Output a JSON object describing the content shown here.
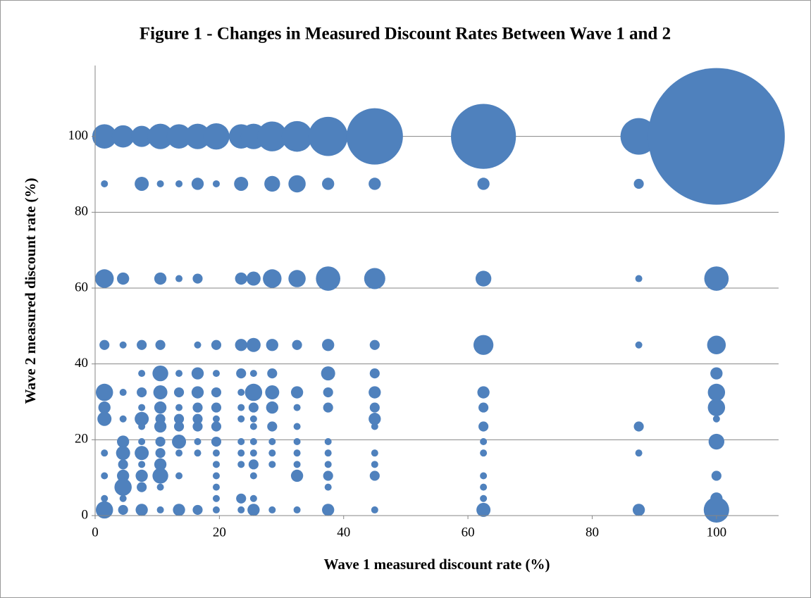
{
  "chart_data": {
    "type": "bubble",
    "title": "Figure 1 - Changes in Measured Discount Rates Between Wave 1 and 2",
    "x_label": "Wave 1 measured discount rate (%)",
    "y_label": "Wave 2 measured discount rate (%)",
    "color": "#4f81bd",
    "grid": true,
    "xlim": [
      0,
      110
    ],
    "xticks": [
      0,
      20,
      40,
      60,
      80,
      100
    ],
    "ylim": [
      0,
      120
    ],
    "yticks": [
      0,
      20,
      40,
      60,
      80,
      100
    ],
    "x": [
      1.5,
      4.5,
      7.5,
      10.5,
      13.5,
      16.5,
      19.5,
      23.5,
      25.5,
      28.5,
      32.5,
      37.5,
      45,
      62.5,
      87.5,
      100,
      1.5,
      7.5,
      10.5,
      13.5,
      16.5,
      19.5,
      23.5,
      28.5,
      32.5,
      37.5,
      45,
      62.5,
      87.5,
      1.5,
      4.5,
      10.5,
      13.5,
      16.5,
      23.5,
      25.5,
      28.5,
      32.5,
      37.5,
      45,
      62.5,
      87.5,
      100,
      1.5,
      4.5,
      7.5,
      10.5,
      16.5,
      19.5,
      23.5,
      25.5,
      28.5,
      32.5,
      37.5,
      45,
      62.5,
      87.5,
      100,
      7.5,
      10.5,
      13.5,
      16.5,
      19.5,
      23.5,
      25.5,
      28.5,
      37.5,
      45,
      100,
      1.5,
      4.5,
      7.5,
      10.5,
      13.5,
      16.5,
      19.5,
      23.5,
      25.5,
      28.5,
      32.5,
      37.5,
      45,
      62.5,
      100,
      1.5,
      7.5,
      10.5,
      13.5,
      16.5,
      19.5,
      23.5,
      25.5,
      28.5,
      32.5,
      37.5,
      45,
      62.5,
      100,
      1.5,
      4.5,
      7.5,
      10.5,
      13.5,
      16.5,
      19.5,
      23.5,
      25.5,
      45,
      100,
      7.5,
      10.5,
      13.5,
      16.5,
      19.5,
      25.5,
      28.5,
      32.5,
      45,
      62.5,
      87.5,
      4.5,
      7.5,
      10.5,
      13.5,
      16.5,
      19.5,
      23.5,
      25.5,
      28.5,
      32.5,
      37.5,
      62.5,
      100,
      1.5,
      4.5,
      7.5,
      10.5,
      13.5,
      16.5,
      19.5,
      23.5,
      25.5,
      28.5,
      32.5,
      37.5,
      45,
      62.5,
      87.5,
      4.5,
      7.5,
      10.5,
      19.5,
      23.5,
      25.5,
      28.5,
      32.5,
      37.5,
      45,
      1.5,
      4.5,
      7.5,
      10.5,
      13.5,
      19.5,
      25.5,
      32.5,
      37.5,
      45,
      62.5,
      100,
      4.5,
      7.5,
      10.5,
      19.5,
      37.5,
      62.5,
      1.5,
      4.5,
      19.5,
      23.5,
      25.5,
      62.5,
      100,
      1.5,
      4.5,
      7.5,
      10.5,
      13.5,
      16.5,
      19.5,
      23.5,
      25.5,
      28.5,
      32.5,
      37.5,
      45,
      62.5,
      87.5,
      100
    ],
    "values": [
      100,
      100,
      100,
      100,
      100,
      100,
      100,
      100,
      100,
      100,
      100,
      100,
      100,
      100,
      100,
      100,
      87.5,
      87.5,
      87.5,
      87.5,
      87.5,
      87.5,
      87.5,
      87.5,
      87.5,
      87.5,
      87.5,
      87.5,
      87.5,
      62.5,
      62.5,
      62.5,
      62.5,
      62.5,
      62.5,
      62.5,
      62.5,
      62.5,
      62.5,
      62.5,
      62.5,
      62.5,
      62.5,
      45,
      45,
      45,
      45,
      45,
      45,
      45,
      45,
      45,
      45,
      45,
      45,
      45,
      45,
      45,
      37.5,
      37.5,
      37.5,
      37.5,
      37.5,
      37.5,
      37.5,
      37.5,
      37.5,
      37.5,
      37.5,
      32.5,
      32.5,
      32.5,
      32.5,
      32.5,
      32.5,
      32.5,
      32.5,
      32.5,
      32.5,
      32.5,
      32.5,
      32.5,
      32.5,
      32.5,
      28.5,
      28.5,
      28.5,
      28.5,
      28.5,
      28.5,
      28.5,
      28.5,
      28.5,
      28.5,
      28.5,
      28.5,
      28.5,
      28.5,
      25.5,
      25.5,
      25.5,
      25.5,
      25.5,
      25.5,
      25.5,
      25.5,
      25.5,
      25.5,
      25.5,
      23.5,
      23.5,
      23.5,
      23.5,
      23.5,
      23.5,
      23.5,
      23.5,
      23.5,
      23.5,
      23.5,
      19.5,
      19.5,
      19.5,
      19.5,
      19.5,
      19.5,
      19.5,
      19.5,
      19.5,
      19.5,
      19.5,
      19.5,
      19.5,
      16.5,
      16.5,
      16.5,
      16.5,
      16.5,
      16.5,
      16.5,
      16.5,
      16.5,
      16.5,
      16.5,
      16.5,
      16.5,
      16.5,
      16.5,
      13.5,
      13.5,
      13.5,
      13.5,
      13.5,
      13.5,
      13.5,
      13.5,
      13.5,
      13.5,
      10.5,
      10.5,
      10.5,
      10.5,
      10.5,
      10.5,
      10.5,
      10.5,
      10.5,
      10.5,
      10.5,
      10.5,
      7.5,
      7.5,
      7.5,
      7.5,
      7.5,
      7.5,
      4.5,
      4.5,
      4.5,
      4.5,
      4.5,
      4.5,
      4.5,
      1.5,
      1.5,
      1.5,
      1.5,
      1.5,
      1.5,
      1.5,
      1.5,
      1.5,
      1.5,
      1.5,
      1.5,
      1.5,
      1.5,
      1.5,
      1.5
    ],
    "sizes": [
      12,
      10,
      9,
      13,
      12,
      13,
      14,
      12,
      13,
      18,
      19,
      31,
      64,
      85,
      27,
      376,
      1,
      4,
      1,
      1,
      3,
      1,
      4,
      5,
      6,
      3,
      3,
      3,
      2,
      7,
      3,
      3,
      1,
      2,
      3,
      4,
      7,
      6,
      12,
      9,
      5,
      1,
      12,
      2,
      1,
      2,
      2,
      1,
      2,
      3,
      4,
      3,
      2,
      3,
      2,
      8,
      1,
      7,
      1,
      5,
      1,
      3,
      1,
      2,
      1,
      2,
      4,
      2,
      3,
      6,
      1,
      2,
      4,
      2,
      3,
      2,
      1,
      6,
      4,
      3,
      2,
      3,
      3,
      6,
      3,
      1,
      3,
      1,
      2,
      2,
      1,
      2,
      3,
      1,
      2,
      2,
      2,
      6,
      4,
      1,
      4,
      2,
      2,
      2,
      1,
      1,
      1,
      3,
      1,
      1,
      3,
      2,
      2,
      2,
      1,
      2,
      1,
      1,
      2,
      2,
      3,
      1,
      2,
      4,
      1,
      2,
      1,
      1,
      1,
      1,
      1,
      1,
      5,
      1,
      4,
      4,
      2,
      1,
      1,
      1,
      1,
      1,
      1,
      1,
      1,
      1,
      1,
      1,
      2,
      1,
      3,
      1,
      1,
      2,
      1,
      1,
      1,
      1,
      1,
      3,
      3,
      5,
      1,
      1,
      1,
      3,
      2,
      2,
      1,
      2,
      6,
      2,
      1,
      1,
      1,
      1,
      1,
      1,
      1,
      2,
      1,
      1,
      3,
      6,
      2,
      3,
      1,
      3,
      2,
      1,
      1,
      3,
      1,
      1,
      3,
      1,
      4,
      3,
      13
    ]
  }
}
